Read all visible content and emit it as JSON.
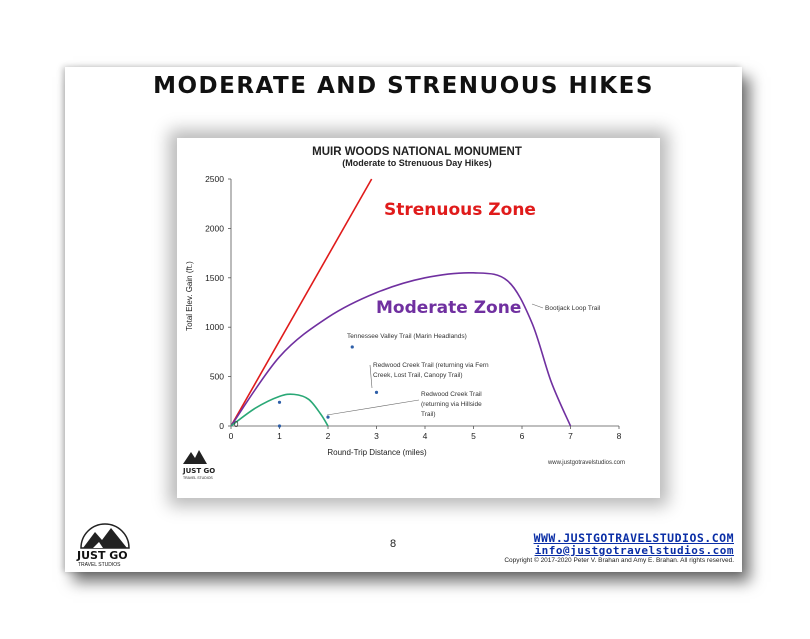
{
  "slide": {
    "title": "MODERATE AND STRENUOUS HIKES",
    "page_number": "8",
    "footer_url": "WWW.JUSTGOTRAVELSTUDIOS.COM",
    "footer_email": "info@justgotravelstudios.com",
    "copyright": "Copyright © 2017-2020 Peter V. Brahan and Amy E. Brahan.  All rights reserved.",
    "logo_text": "JUST GO",
    "logo_subtext": "TRAVEL STUDIOS"
  },
  "chart_data": {
    "type": "line",
    "title": "MUIR WOODS NATIONAL MONUMENT",
    "subtitle": "(Moderate to Strenuous Day Hikes)",
    "xlabel": "Round-Trip Distance (miles)",
    "ylabel": "Total Elev. Gain (ft.)",
    "xlim": [
      0,
      8
    ],
    "ylim": [
      0,
      2500
    ],
    "xticks": [
      0,
      1,
      2,
      3,
      4,
      5,
      6,
      7,
      8
    ],
    "yticks": [
      0,
      500,
      1000,
      1500,
      2000,
      2500
    ],
    "grid": false,
    "watermark": "www.justgotravelstudios.com",
    "zone_labels": [
      {
        "text": "Strenuous Zone",
        "color": "#e01b1b",
        "x": 3.2,
        "y": 2150
      },
      {
        "text": "Moderate Zone",
        "color": "#7030a0",
        "x": 3.0,
        "y": 1175
      }
    ],
    "boundaries": [
      {
        "color": "#e01b1b",
        "x": [
          0,
          2.9
        ],
        "y": [
          0,
          2500
        ]
      },
      {
        "color": "#7030a0",
        "x": [
          0,
          1,
          2,
          3,
          4,
          5,
          5.7,
          6.2,
          6.6,
          7
        ],
        "y": [
          0,
          700,
          1100,
          1350,
          1500,
          1550,
          1470,
          1050,
          450,
          0
        ]
      },
      {
        "color": "#2aa876",
        "x": [
          0,
          0.5,
          1,
          1.3,
          1.6,
          1.85,
          2
        ],
        "y": [
          0,
          180,
          300,
          320,
          270,
          120,
          0
        ]
      }
    ],
    "points": [
      {
        "x": 2.5,
        "y": 800,
        "label": "Tennessee  Valley Trail (Marin Headlands)"
      },
      {
        "x": 3.0,
        "y": 340,
        "label": "Redwood Creek Trail (returning via Fern Creek, Lost Trail, Canopy Trail)"
      },
      {
        "x": 1.0,
        "y": 240,
        "label": ""
      },
      {
        "x": 2.0,
        "y": 90,
        "label": "Redwood Creek Trail (returning via Hillside Trail)"
      },
      {
        "x": 1.0,
        "y": 0,
        "label": ""
      }
    ],
    "annotations": [
      {
        "text": "Bootjack Loop Trail"
      },
      {
        "text": "0"
      }
    ],
    "point_color": "#2e5fa8"
  }
}
